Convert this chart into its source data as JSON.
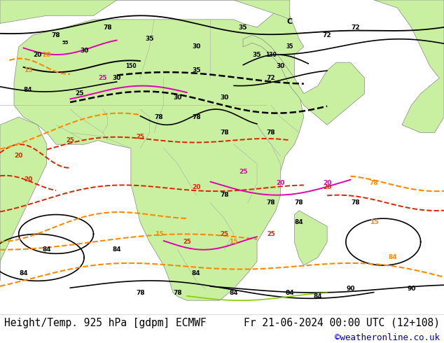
{
  "title_left": "Height/Temp. 925 hPa [gdpm] ECMWF",
  "title_right": "Fr 21-06-2024 00:00 UTC (12+108)",
  "watermark": "©weatheronline.co.uk",
  "bg_color": "#ffffff",
  "sea_color": "#e8e8e8",
  "land_color": "#c8f0a0",
  "border_color": "#aaaaaa",
  "title_fontsize": 10.5,
  "watermark_color": "#0000cc",
  "text_color": "#000000",
  "fig_width": 6.34,
  "fig_height": 4.9,
  "dpi": 100,
  "black_contour_color": "#000000",
  "red_contour_color": "#dd2200",
  "orange_contour_color": "#ff8800",
  "magenta_contour_color": "#dd00aa",
  "green_contour_color": "#88cc00"
}
